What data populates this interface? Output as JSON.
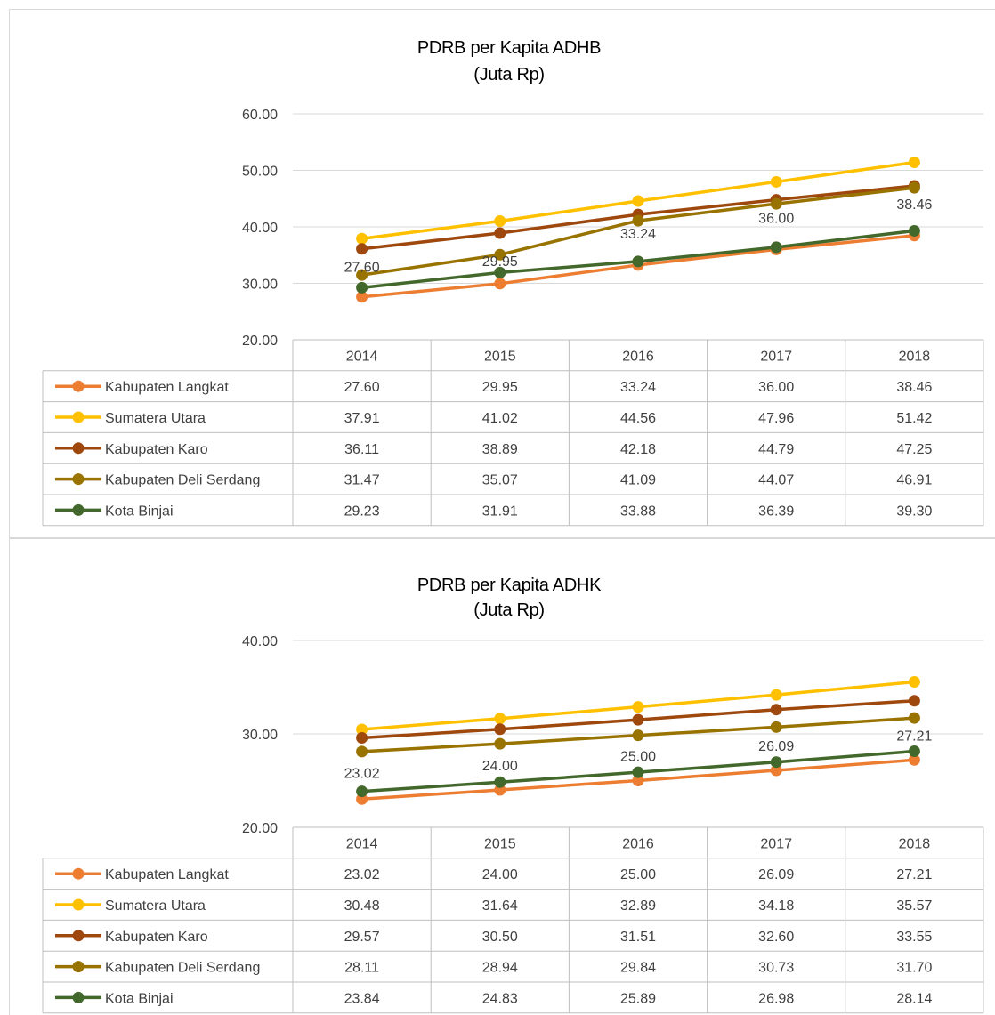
{
  "chart_data": [
    {
      "type": "line",
      "title": "PDRB per Kapita ADHB",
      "subtitle": "(Juta Rp)",
      "categories": [
        "2014",
        "2015",
        "2016",
        "2017",
        "2018"
      ],
      "ylim": [
        20,
        60
      ],
      "yticks": [
        "60.00",
        "50.00",
        "40.00",
        "30.00",
        "20.00"
      ],
      "grid": true,
      "data_labels_series": "Kabupaten Langkat",
      "series": [
        {
          "name": "Kabupaten Langkat",
          "color": "#ED7D31",
          "values": [
            27.6,
            29.95,
            33.24,
            36.0,
            38.46
          ],
          "labels": [
            "27.60",
            "29.95",
            "33.24",
            "36.00",
            "38.46"
          ]
        },
        {
          "name": "Sumatera Utara",
          "color": "#FFC000",
          "values": [
            37.91,
            41.02,
            44.56,
            47.96,
            51.42
          ],
          "labels": [
            "37.91",
            "41.02",
            "44.56",
            "47.96",
            "51.42"
          ]
        },
        {
          "name": "Kabupaten Karo",
          "color": "#9E480E",
          "values": [
            36.11,
            38.89,
            42.18,
            44.79,
            47.25
          ],
          "labels": [
            "36.11",
            "38.89",
            "42.18",
            "44.79",
            "47.25"
          ]
        },
        {
          "name": "Kabupaten Deli Serdang",
          "color": "#997300",
          "values": [
            31.47,
            35.07,
            41.09,
            44.07,
            46.91
          ],
          "labels": [
            "31.47",
            "35.07",
            "41.09",
            "44.07",
            "46.91"
          ]
        },
        {
          "name": "Kota Binjai",
          "color": "#43682B",
          "values": [
            29.23,
            31.91,
            33.88,
            36.39,
            39.3
          ],
          "labels": [
            "29.23",
            "31.91",
            "33.88",
            "36.39",
            "39.30"
          ]
        }
      ]
    },
    {
      "type": "line",
      "title": "PDRB per Kapita ADHK",
      "subtitle": "(Juta Rp)",
      "categories": [
        "2014",
        "2015",
        "2016",
        "2017",
        "2018"
      ],
      "ylim": [
        20,
        40
      ],
      "yticks": [
        "40.00",
        "30.00",
        "20.00"
      ],
      "grid": true,
      "data_labels_series": "Kabupaten Langkat",
      "series": [
        {
          "name": "Kabupaten Langkat",
          "color": "#ED7D31",
          "values": [
            23.02,
            24.0,
            25.0,
            26.09,
            27.21
          ],
          "labels": [
            "23.02",
            "24.00",
            "25.00",
            "26.09",
            "27.21"
          ]
        },
        {
          "name": "Sumatera Utara",
          "color": "#FFC000",
          "values": [
            30.48,
            31.64,
            32.89,
            34.18,
            35.57
          ],
          "labels": [
            "30.48",
            "31.64",
            "32.89",
            "34.18",
            "35.57"
          ]
        },
        {
          "name": "Kabupaten Karo",
          "color": "#9E480E",
          "values": [
            29.57,
            30.5,
            31.51,
            32.6,
            33.55
          ],
          "labels": [
            "29.57",
            "30.50",
            "31.51",
            "32.60",
            "33.55"
          ]
        },
        {
          "name": "Kabupaten Deli Serdang",
          "color": "#997300",
          "values": [
            28.11,
            28.94,
            29.84,
            30.73,
            31.7
          ],
          "labels": [
            "28.11",
            "28.94",
            "29.84",
            "30.73",
            "31.70"
          ]
        },
        {
          "name": "Kota Binjai",
          "color": "#43682B",
          "values": [
            23.84,
            24.83,
            25.89,
            26.98,
            28.14
          ],
          "labels": [
            "23.84",
            "24.83",
            "25.89",
            "26.98",
            "28.14"
          ]
        }
      ]
    }
  ]
}
